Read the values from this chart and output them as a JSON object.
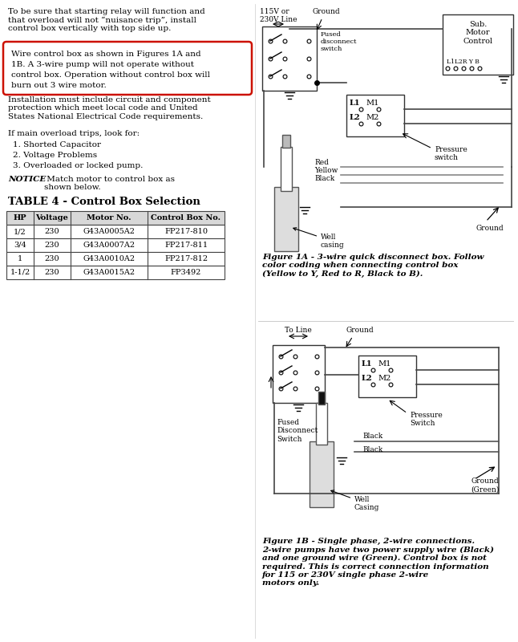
{
  "para1": "To be sure that starting relay will function and\nthat overload will not “nuisance trip”, install\ncontrol box vertically with top side up.",
  "para2_lines": [
    "Wire control box as shown in Figures 1A and",
    "1B. A 3-wire pump will not operate without",
    "control box. Operation without control box will",
    "burn out 3 wire motor."
  ],
  "para3": "Installation must include circuit and component\nprotection which meet local code and United\nStates National Electrical Code requirements.",
  "para4": "If main overload trips, look for:",
  "list_items": [
    "1. Shorted Capacitor",
    "2. Voltage Problems",
    "3. Overloaded or locked pump."
  ],
  "notice_bold": "NOTICE",
  "notice_rest": " Match motor to control box as\nshown below.",
  "table_title": "TABLE 4 - Control Box Selection",
  "table_headers": [
    "HP",
    "Voltage",
    "Motor No.",
    "Control Box No."
  ],
  "table_rows": [
    [
      "1/2",
      "230",
      "G43A0005A2",
      "FP217-810"
    ],
    [
      "3/4",
      "230",
      "G43A0007A2",
      "FP217-811"
    ],
    [
      "1",
      "230",
      "G43A0010A2",
      "FP217-812"
    ],
    [
      "1-1/2",
      "230",
      "G43A0015A2",
      "FP3492"
    ]
  ],
  "fig1a_cap": "Figure 1A - 3-wire quick disconnect box. Follow\ncolor coding when connecting control box\n(Yellow to Y, Red to R, Black to B).",
  "fig1b_cap": "Figure 1B - Single phase, 2-wire connections.\n2-wire pumps have two power supply wire (Black)\nand one ground wire (Green). Control box is not\nrequired. This is correct connection information\nfor 115 or 230V single phase 2-wire\nmotors only."
}
